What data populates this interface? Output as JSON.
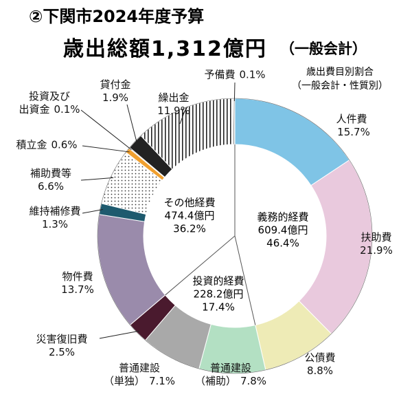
{
  "chart_data": {
    "type": "donut",
    "title": "②下関市2024年度予算",
    "subtitle": "歳出総額1,312億円",
    "subtitle_note": "（一般会計）",
    "annotation": "歳出費目別割合\n（一般会計・性質別）",
    "categories": [
      "人件費",
      "扶助費",
      "公債費",
      "普通建設\n（補助）",
      "普通建設\n（単独）",
      "災害復旧費",
      "物件費",
      "維持補修費",
      "補助費等",
      "積立金",
      "投資及び\n出資金",
      "貸付金",
      "繰出金",
      "予備費"
    ],
    "values": [
      15.7,
      21.9,
      8.8,
      7.8,
      7.1,
      2.5,
      13.7,
      1.3,
      6.6,
      0.6,
      0.1,
      1.9,
      11.9,
      0.1
    ],
    "value_labels": [
      "15.7%",
      "21.9%",
      "8.8%",
      "7.8%",
      "7.1%",
      "2.5%",
      "13.7%",
      "1.3%",
      "6.6%",
      "0.6%",
      "0.1%",
      "1.9%",
      "11.9%",
      "0.1%"
    ],
    "colors": [
      "#7fc4e6",
      "#e9c9dd",
      "#eeebb6",
      "#b3e0c3",
      "#a9a9a9",
      "#4a1a2e",
      "#9a8bab",
      "#1e5a6e",
      "#ffffff",
      "#f0a030",
      "#555555",
      "#222222",
      "#ffffff",
      "#333333"
    ],
    "patterns": [
      null,
      null,
      null,
      null,
      null,
      null,
      null,
      null,
      "dots",
      null,
      null,
      null,
      "stripes",
      null
    ],
    "groups": [
      {
        "name": "義務的経費",
        "amount": {
          "value": 609.4,
          "label": "609.4億円"
        },
        "share": {
          "value": 46.4,
          "label": "46.4%"
        }
      },
      {
        "name": "投資的経費",
        "amount": {
          "value": 228.2,
          "label": "228.2億円"
        },
        "share": {
          "value": 17.4,
          "label": "17.4%"
        }
      },
      {
        "name": "その他経費",
        "amount": {
          "value": 474.4,
          "label": "474.4億円"
        },
        "share": {
          "value": 36.2,
          "label": "36.2%"
        }
      }
    ]
  }
}
